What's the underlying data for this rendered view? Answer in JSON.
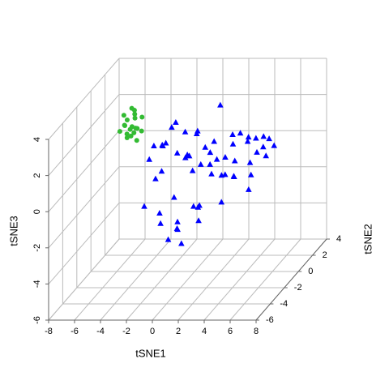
{
  "chart_data": {
    "type": "scatter3d",
    "xlabel": "tSNE1",
    "ylabel": "tSNE2",
    "zlabel": "tSNE3",
    "xlim": [
      -8,
      8
    ],
    "ylim": [
      -6,
      4
    ],
    "zlim": [
      -6,
      4
    ],
    "xticks": [
      -8,
      -6,
      -4,
      -2,
      0,
      2,
      4,
      6,
      8
    ],
    "yticks": [
      -6,
      -4,
      -2,
      0,
      2,
      4
    ],
    "zticks": [
      -6,
      -4,
      -2,
      0,
      2,
      4
    ],
    "grid": true,
    "series": [
      {
        "color": "#0000ff",
        "marker": "triangle",
        "x": [
          -3,
          -2.5,
          -2,
          -1.5,
          -1,
          -0.5,
          0,
          0.5,
          1,
          1.5,
          2,
          2.5,
          3,
          3.5,
          4,
          4.5,
          5,
          5.5,
          -2.8,
          -1.8,
          -0.8,
          0.2,
          1.2,
          2.2,
          3.2,
          4.2,
          5.2,
          -3.5,
          -2.2,
          -1.2,
          0.8,
          1.8,
          2.8,
          3.8,
          4.8,
          -1,
          0,
          1,
          2,
          -0.5,
          0.5,
          1.5,
          -2,
          -1.5,
          -1,
          0,
          3,
          4,
          2,
          1,
          -0.8,
          -0.3,
          0.2,
          2.5,
          3.5,
          -3.2,
          -2.6,
          5.8,
          4.4,
          1.3
        ],
        "y": [
          1,
          0,
          -1,
          2,
          0.5,
          -2,
          1.5,
          -0.5,
          2.5,
          0,
          -1.5,
          1,
          2,
          -1,
          0.5,
          1.5,
          -0.5,
          0,
          -2,
          2,
          -1,
          0.5,
          -2.5,
          1.5,
          -0.5,
          2,
          1,
          0,
          -1.5,
          2.5,
          -1,
          0.5,
          -2,
          1,
          0,
          -3,
          -2.5,
          -2,
          -3,
          -1.5,
          -2.8,
          -2.2,
          1,
          -0.5,
          0.8,
          2.2,
          -1.2,
          0.3,
          2.8,
          1.8,
          -3.5,
          -3.2,
          -2.8,
          -0.8,
          1.2,
          1.8,
          -1,
          0.6,
          -2.4,
          0
        ],
        "z": [
          0.5,
          1,
          0,
          -0.5,
          1.5,
          -1,
          0.2,
          2,
          -0.8,
          1.2,
          0.6,
          -1.2,
          0.3,
          1.5,
          -0.2,
          0.8,
          1.6,
          0.4,
          -1.5,
          -0.6,
          1,
          -0.3,
          0.7,
          -1.4,
          1.8,
          0,
          0.9,
          0.2,
          -0.2,
          0.5,
          -2,
          -0.9,
          1.1,
          -1.1,
          0.6,
          -2,
          -2.5,
          -1.5,
          -1,
          -3,
          -3.2,
          -2.2,
          1.8,
          2.2,
          0.1,
          -0.4,
          -0.1,
          -1.6,
          0.4,
          2.4,
          -1.2,
          -2.8,
          -2,
          -1.8,
          0.9,
          0.3,
          1.4,
          0.7,
          1.2,
          -0.6
        ]
      },
      {
        "color": "#33bb33",
        "marker": "circle",
        "x": [
          -6.5,
          -6.2,
          -5.8,
          -5.5,
          -6,
          -6.3,
          -5.7,
          -5.2,
          -6.8,
          -6.1,
          -5.9,
          -5.4,
          -6.4,
          -5.6,
          -6,
          -5.3,
          -6.6,
          -5.8,
          -6.2,
          -5.5
        ],
        "y": [
          2,
          1.8,
          2.2,
          1.5,
          2.5,
          2,
          1.6,
          2.1,
          1.9,
          2.3,
          1.7,
          2.4,
          2.2,
          1.8,
          2,
          1.6,
          2.1,
          2.3,
          1.5,
          1.9
        ],
        "z": [
          1.2,
          0.8,
          1.5,
          1,
          1.8,
          0.5,
          1.3,
          1.6,
          0.9,
          2,
          1.1,
          0.7,
          1.4,
          1.9,
          0.6,
          1.2,
          1.7,
          0.9,
          1.4,
          0.4
        ]
      }
    ]
  }
}
